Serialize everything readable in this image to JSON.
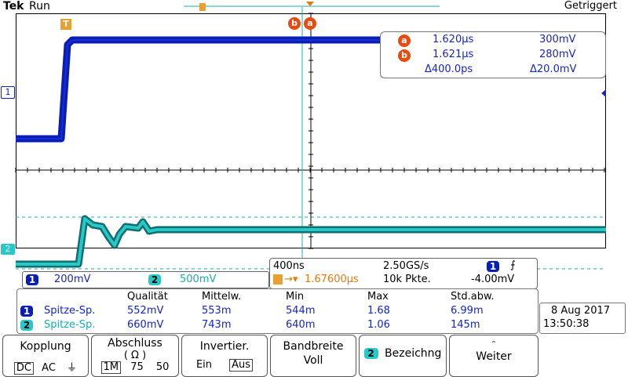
{
  "header": {
    "brand": "Tek",
    "run_state": "Run",
    "trigger_status": "Getriggert"
  },
  "markers": {
    "trigger_t": "T",
    "cursor_b": "b",
    "cursor_a": "a",
    "ch1": "1",
    "ch2": "2"
  },
  "cursors": {
    "a": {
      "label": "a",
      "time": "1.620µs",
      "value": "300mV"
    },
    "b": {
      "label": "b",
      "time": "1.621µs",
      "value": "280mV"
    },
    "delta": {
      "time": "Δ400.0ps",
      "value": "Δ20.0mV"
    }
  },
  "channels": {
    "ch1": {
      "num": "1",
      "scale": "200mV"
    },
    "ch2": {
      "num": "2",
      "scale": "500mV"
    }
  },
  "timebase": {
    "time_div": "400ns",
    "sample_rate": "2.50GS/s",
    "trigger_source": "1",
    "trigger_slope_symbol": "⨍",
    "trigger_pos": "1.67600µs",
    "record_length": "10k Pkte.",
    "trigger_level": "-4.00mV"
  },
  "measurements": {
    "headers": [
      "Qualität",
      "Mittelw.",
      "Min",
      "Max",
      "Std.abw."
    ],
    "rows": [
      {
        "ch": "1",
        "name": "Spitze-Sp.",
        "values": [
          "552mV",
          "553m",
          "544m",
          "1.68",
          "6.99m"
        ]
      },
      {
        "ch": "2",
        "name": "Spitze-Sp.",
        "values": [
          "660mV",
          "743m",
          "640m",
          "1.06",
          "145m"
        ]
      }
    ]
  },
  "datetime": {
    "date": "8 Aug 2017",
    "time": "13:50:38"
  },
  "menu": {
    "kopplung": {
      "title": "Kopplung",
      "opt1": "DC",
      "opt2": "AC",
      "opt3": "⏚"
    },
    "abschluss": {
      "title": "Abschluss",
      "sub": "( Ω )",
      "opt1": "1M",
      "opt2": "75",
      "opt3": "50"
    },
    "invertier": {
      "title": "Invertier.",
      "opt1": "Ein",
      "opt2": "Aus"
    },
    "bandbreite": {
      "title": "Bandbreite",
      "value": "Voll"
    },
    "bezeichnung": {
      "ch": "2",
      "title": "Bezeichng"
    },
    "weiter": {
      "title": "Weiter"
    }
  },
  "colors": {
    "ch1": "#0a1eb4",
    "ch2": "#28c8c8",
    "cursor": "#e8780a"
  }
}
